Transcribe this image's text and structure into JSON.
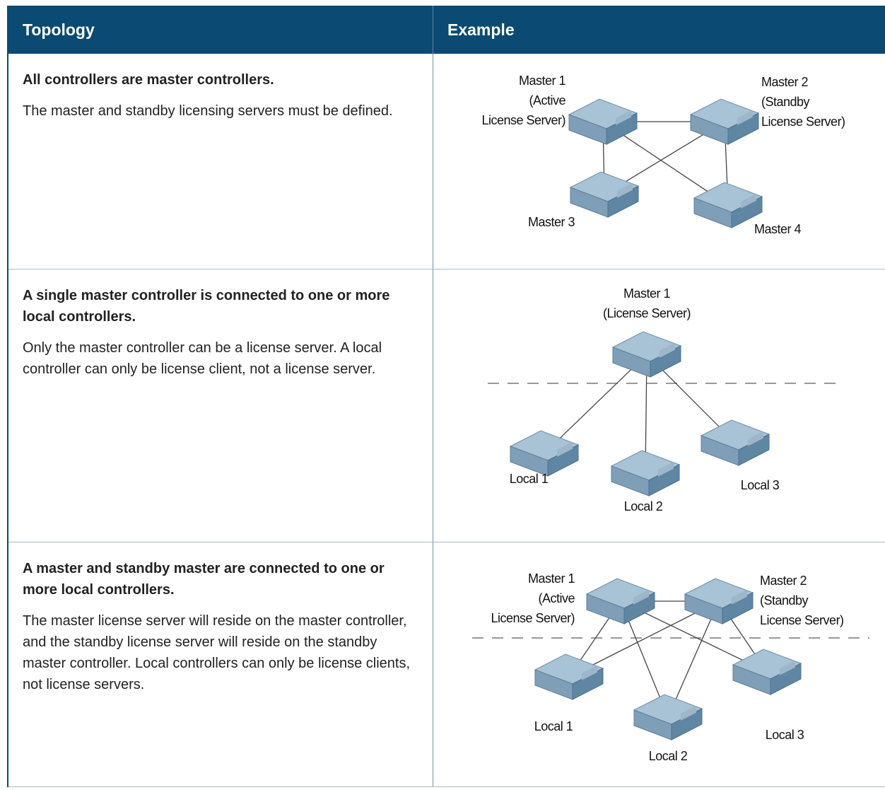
{
  "table": {
    "headers": [
      "Topology",
      "Example"
    ],
    "rows": [
      {
        "title": "All controllers are master controllers.",
        "description": "The master and standby licensing servers must be defined.",
        "diagram": {
          "nodes": [
            {
              "label": [
                "Master 1",
                "(Active",
                "License Server)"
              ]
            },
            {
              "label": [
                "Master 2",
                "(Standby",
                "License Server)"
              ]
            },
            {
              "label": [
                "Master 3"
              ]
            },
            {
              "label": [
                "Master 4"
              ]
            }
          ]
        }
      },
      {
        "title": "A single master controller is connected to one or more local controllers.",
        "description": "Only the master controller can be a license server. A local controller can only be license client, not a license server.",
        "diagram": {
          "nodes": [
            {
              "label": [
                "Master 1",
                "(License Server)"
              ]
            },
            {
              "label": [
                "Local 1"
              ]
            },
            {
              "label": [
                "Local 2"
              ]
            },
            {
              "label": [
                "Local 3"
              ]
            }
          ]
        }
      },
      {
        "title": "A master and standby master are connected to one or more local controllers.",
        "description": "The master license server will reside on the master controller, and the standby license server will reside on the standby master controller. Local controllers can only be license clients, not license servers.",
        "diagram": {
          "nodes": [
            {
              "label": [
                "Master 1",
                "(Active",
                "License Server)"
              ]
            },
            {
              "label": [
                "Master 2",
                "(Standby",
                "License Server)"
              ]
            },
            {
              "label": [
                "Local 1"
              ]
            },
            {
              "label": [
                "Local 2"
              ]
            },
            {
              "label": [
                "Local 3"
              ]
            }
          ]
        }
      }
    ]
  }
}
